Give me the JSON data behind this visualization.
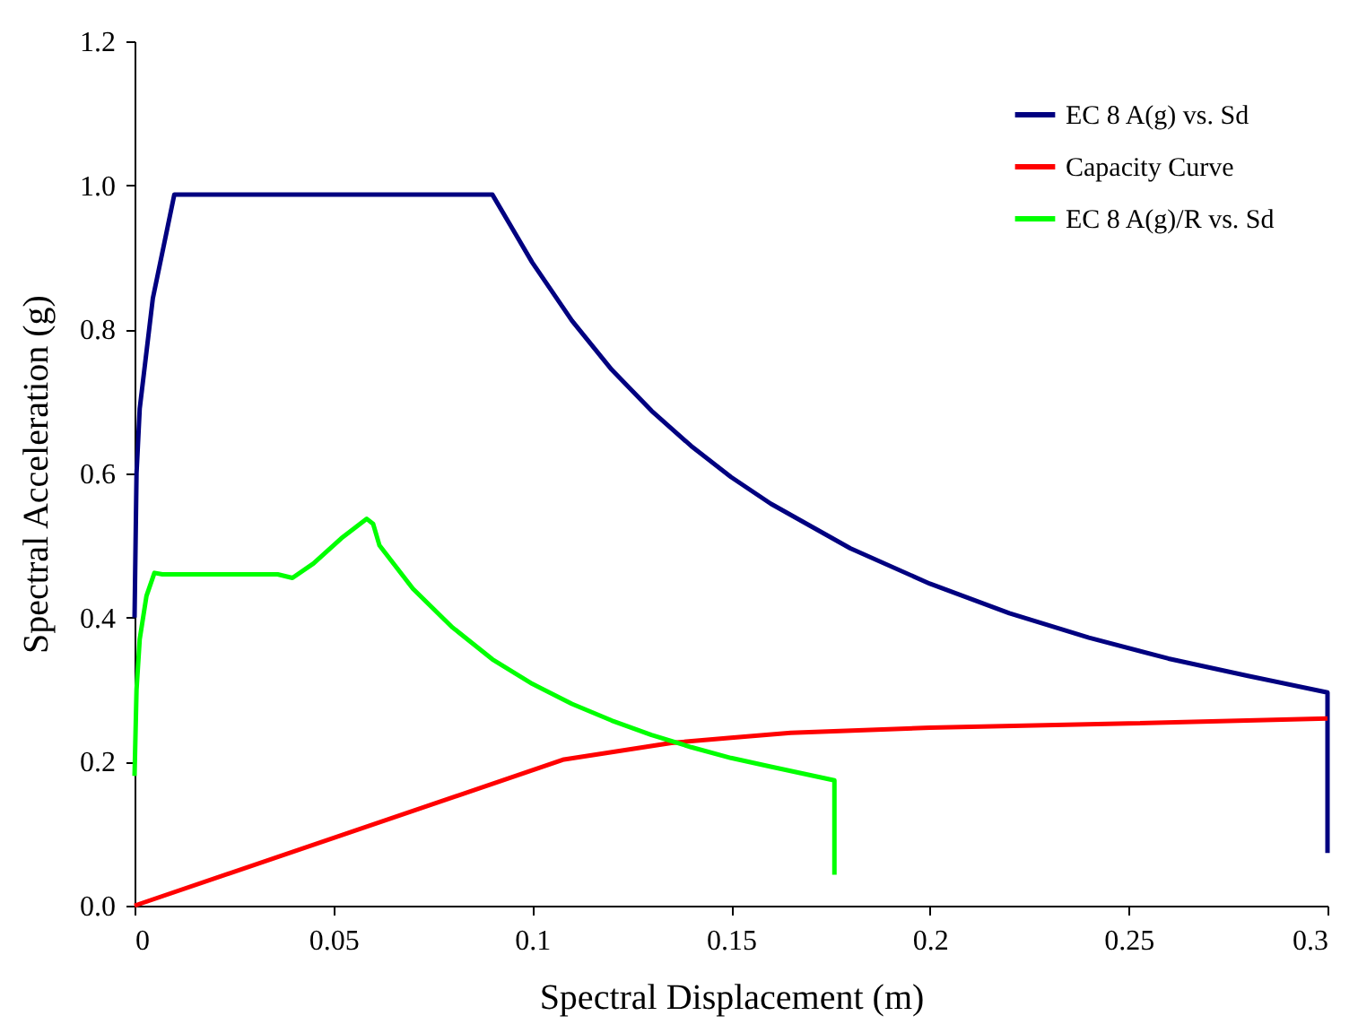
{
  "chart_data": {
    "type": "line",
    "xlabel": "Spectral Displacement (m)",
    "ylabel": "Spectral Acceleration (g)",
    "xlim": [
      0,
      0.3
    ],
    "ylim": [
      0,
      1.2
    ],
    "xticks": [
      0,
      0.05,
      0.1,
      0.15,
      0.2,
      0.25,
      0.3
    ],
    "yticks": [
      {
        "value": 0,
        "label": "0.0"
      },
      0.2,
      0.4,
      0.6,
      0.8,
      {
        "value": 1,
        "label": "1.0"
      },
      1.2
    ],
    "grid": false,
    "legend": "top right",
    "marker": "none",
    "line_style": "solid",
    "series": [
      {
        "name": "EC 8 A(g) vs. Sd",
        "color": "#000080",
        "x": [
          0,
          0.0005,
          0.0013,
          0.0046,
          0.01,
          0.09,
          0.1,
          0.11,
          0.12,
          0.13,
          0.14,
          0.15,
          0.16,
          0.18,
          0.2,
          0.22,
          0.24,
          0.26,
          0.28,
          0.3,
          0.3
        ],
        "values": [
          0.4,
          0.6,
          0.69,
          0.843,
          0.987,
          0.987,
          0.893,
          0.812,
          0.744,
          0.687,
          0.638,
          0.595,
          0.558,
          0.496,
          0.447,
          0.406,
          0.372,
          0.343,
          0.319,
          0.296,
          0.073
        ]
      },
      {
        "name": "Capacity Curve",
        "color": "#ff0000",
        "x": [
          0,
          0.108,
          0.135,
          0.15,
          0.165,
          0.2,
          0.25,
          0.3
        ],
        "values": [
          0,
          0.203,
          0.226,
          0.233,
          0.24,
          0.247,
          0.253,
          0.26
        ]
      },
      {
        "name": "EC 8 A(g)/R vs. Sd",
        "color": "#00ff00",
        "x": [
          0,
          0.0005,
          0.0013,
          0.003,
          0.005,
          0.007,
          0.036,
          0.0397,
          0.045,
          0.052,
          0.0584,
          0.06,
          0.0616,
          0.07,
          0.08,
          0.09,
          0.1,
          0.11,
          0.12,
          0.13,
          0.14,
          0.15,
          0.16,
          0.176,
          0.176
        ],
        "values": [
          0.18,
          0.3,
          0.37,
          0.43,
          0.462,
          0.46,
          0.46,
          0.455,
          0.475,
          0.51,
          0.537,
          0.53,
          0.5,
          0.44,
          0.386,
          0.342,
          0.308,
          0.28,
          0.257,
          0.237,
          0.22,
          0.205,
          0.193,
          0.174,
          0.043
        ]
      }
    ]
  }
}
